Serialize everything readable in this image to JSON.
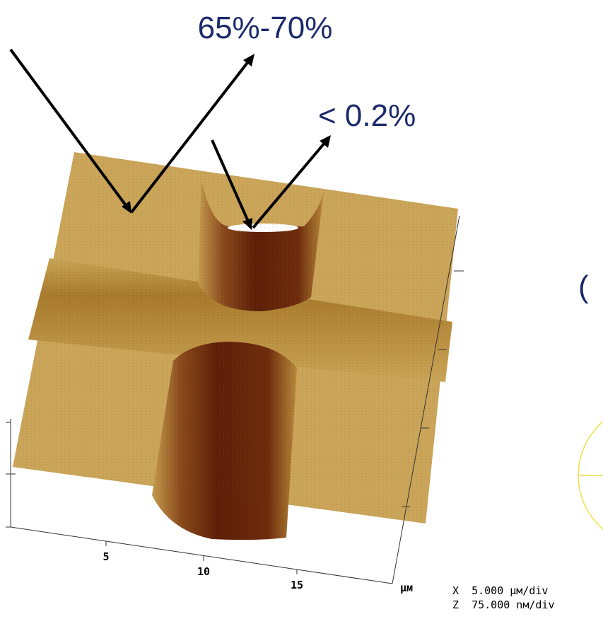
{
  "annotations": {
    "upper": "65%-70%",
    "lower": "< 0.2%"
  },
  "axis": {
    "ticks": [
      "5",
      "10",
      "15"
    ],
    "unit": "μм"
  },
  "info": {
    "x": "X  5.000 μм/div",
    "z": "Z  75.000 nм/div"
  },
  "side": {
    "fragment": "("
  }
}
